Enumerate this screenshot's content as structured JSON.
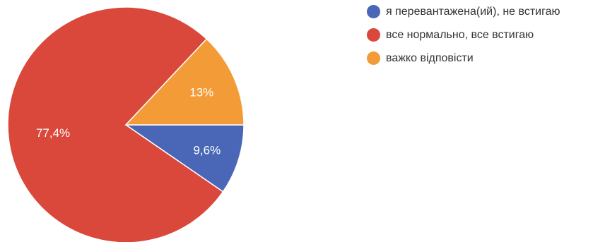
{
  "chart_data": {
    "type": "pie",
    "slices": [
      {
        "label": "я перевантажена(ий), не встигаю",
        "value": 9.6,
        "value_label": "9,6%",
        "color": "#4967b6"
      },
      {
        "label": "все нормально, все встигаю",
        "value": 77.4,
        "value_label": "77,4%",
        "color": "#d9483b"
      },
      {
        "label": "важко відповісти",
        "value": 13.0,
        "value_label": "13%",
        "color": "#f29b37"
      }
    ],
    "legend_position": "right"
  }
}
